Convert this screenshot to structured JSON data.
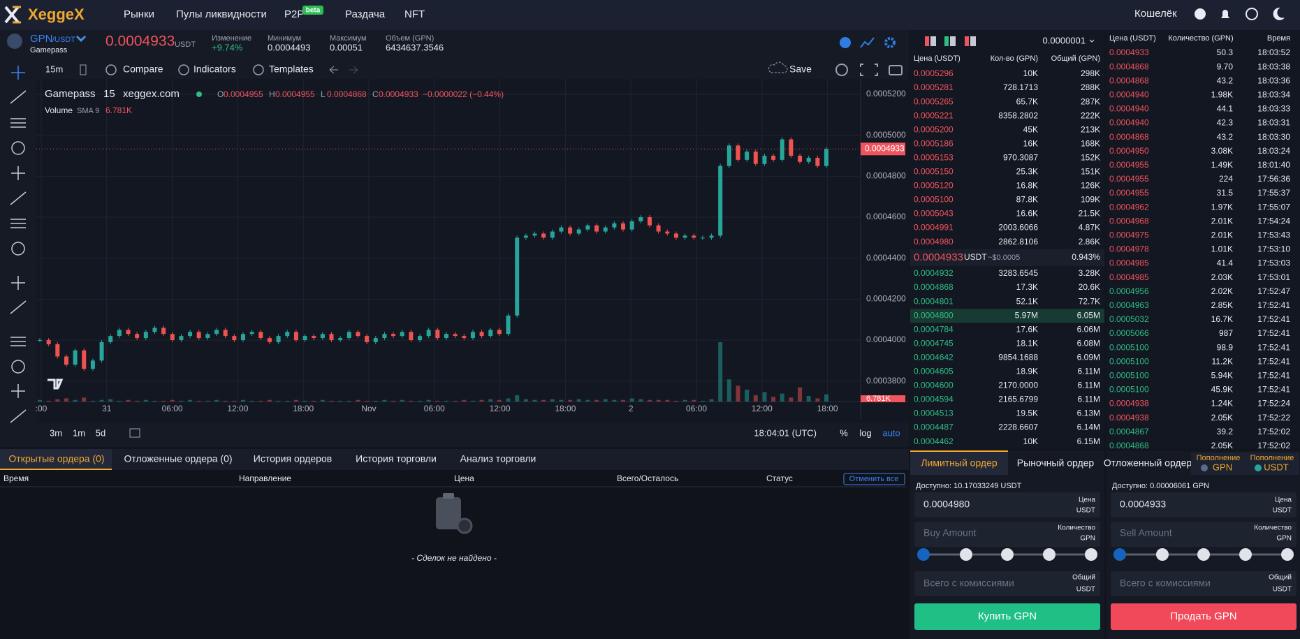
{
  "nav": {
    "logo": "XeggeX",
    "links": [
      "Рынки",
      "Пулы ликвидности",
      "P2P",
      "Раздача",
      "NFT"
    ],
    "badge": "beta",
    "wallet": "Кошелёк"
  },
  "ticker": {
    "base": "GPN",
    "quote": "/USDT",
    "name": "Gamepass",
    "price": "0.0004933",
    "price_unit": "USDT",
    "stats": [
      {
        "label": "Изменение",
        "value": "+9.74%"
      },
      {
        "label": "Минимум",
        "value": "0.0004493"
      },
      {
        "label": "Максимум",
        "value": "0.00051"
      },
      {
        "label": "Объем (GPN)",
        "value": "6434637.3546"
      }
    ]
  },
  "toolbar": {
    "interval": "15m",
    "items": [
      "Compare",
      "Indicators",
      "Templates"
    ],
    "save": "Save"
  },
  "chart": {
    "type": "candlestick",
    "symbol": "Gamepass",
    "interval": "15",
    "source": "xeggex.com",
    "ohlc": [
      {
        "key": "O",
        "value": "0.0004955"
      },
      {
        "key": "H",
        "value": "0.0004955"
      },
      {
        "key": "L",
        "value": "0.0004868"
      },
      {
        "key": "C",
        "value": "0.0004933"
      }
    ],
    "change": "−0.0000022 (−0.44%)",
    "volume_name": "Volume",
    "volume_sma": "SMA 9",
    "volume_value": "6.781K",
    "ylim": [
      0.00037,
      0.0005275
    ],
    "yticks": [
      {
        "value": 0.00052,
        "label": "0.0005200"
      },
      {
        "value": 0.0005,
        "label": "0.0005000"
      },
      {
        "value": 0.00048,
        "label": "0.0004800"
      },
      {
        "value": 0.00046,
        "label": "0.0004600"
      },
      {
        "value": 0.00044,
        "label": "0.0004400"
      },
      {
        "value": 0.00042,
        "label": "0.0004200"
      },
      {
        "value": 0.0004,
        "label": "0.0004000"
      },
      {
        "value": 0.00038,
        "label": "0.0003800"
      }
    ],
    "last_price": {
      "value": 0.0004933,
      "label": "0.0004933"
    },
    "xticks": [
      ":00",
      "31",
      "06:00",
      "12:00",
      "18:00",
      "Nov",
      "06:00",
      "12:00",
      "18:00",
      "2",
      "06:00",
      "12:00",
      "18:00"
    ],
    "closes": [
      0.0004,
      0.000398,
      0.000392,
      0.000388,
      0.000395,
      0.000386,
      0.00039,
      0.000399,
      0.000402,
      0.000405,
      0.000403,
      0.000401,
      0.000404,
      0.000406,
      0.000403,
      0.0004,
      0.000402,
      0.000404,
      0.000401,
      0.000403,
      0.000405,
      0.000402,
      0.0004,
      0.000403,
      0.000404,
      0.000401,
      0.000399,
      0.000402,
      0.000404,
      0.0004,
      0.000402,
      0.000401,
      0.000403,
      0.0004,
      0.000401,
      0.000404,
      0.000402,
      0.000399,
      0.000401,
      0.000403,
      0.000402,
      0.000404,
      0.0004,
      0.000402,
      0.000405,
      0.000401,
      0.000403,
      0.000402,
      0.000401,
      0.000404,
      0.000402,
      0.000405,
      0.000403,
      0.000412,
      0.00045,
      0.000451,
      0.000452,
      0.00045,
      0.000453,
      0.000455,
      0.000452,
      0.000454,
      0.000456,
      0.000453,
      0.000455,
      0.000457,
      0.000454,
      0.000458,
      0.00046,
      0.000456,
      0.000453,
      0.000452,
      0.00045,
      0.000451,
      0.00045,
      0.00045,
      0.000451,
      0.000485,
      0.000495,
      0.000488,
      0.000492,
      0.000486,
      0.00049,
      0.000488,
      0.000498,
      0.00049,
      0.000487,
      0.000489,
      0.000485,
      0.0004933
    ],
    "volumes": [
      2,
      1,
      3,
      4,
      2,
      5,
      1,
      2,
      3,
      1,
      2,
      1,
      2,
      1,
      1,
      2,
      1,
      2,
      1,
      1,
      2,
      1,
      1,
      2,
      1,
      1,
      2,
      1,
      1,
      2,
      1,
      1,
      2,
      1,
      1,
      1,
      2,
      1,
      1,
      2,
      1,
      2,
      1,
      1,
      2,
      1,
      1,
      1,
      2,
      1,
      2,
      3,
      2,
      4,
      8,
      3,
      2,
      2,
      3,
      2,
      2,
      3,
      2,
      2,
      3,
      2,
      2,
      4,
      3,
      2,
      2,
      2,
      1,
      2,
      2,
      1,
      3,
      75,
      28,
      20,
      15,
      8,
      12,
      6,
      10,
      5,
      18,
      7,
      4,
      9
    ],
    "up_color": "#26a69a",
    "down_color": "#ef5350",
    "grid": true
  },
  "chart_footer": {
    "ranges": [
      "3m",
      "1m",
      "5d"
    ],
    "time": "18:04:01 (UTC)",
    "scale": [
      "%",
      "log",
      "auto"
    ]
  },
  "orders": {
    "tabs": [
      "Открытые ордера (0)",
      "Отложенные ордера (0)",
      "История ордеров",
      "История торговли",
      "Анализ торговли"
    ],
    "columns": [
      "Время",
      "Направление",
      "Цена",
      "Всего/Осталось",
      "Статус"
    ],
    "cancel_all": "Отменить все",
    "empty": "- Сделок не найдено -"
  },
  "order_book": {
    "tick": "0.0000001",
    "columns": [
      "Цена (USDT)",
      "Кол-во (GPN)",
      "Общий (GPN)"
    ],
    "asks": [
      [
        "0.0005296",
        "10K",
        "298K"
      ],
      [
        "0.0005281",
        "728.1713",
        "288K"
      ],
      [
        "0.0005265",
        "65.7K",
        "287K"
      ],
      [
        "0.0005221",
        "8358.2802",
        "222K"
      ],
      [
        "0.0005200",
        "45K",
        "213K"
      ],
      [
        "0.0005186",
        "16K",
        "168K"
      ],
      [
        "0.0005153",
        "970.3087",
        "152K"
      ],
      [
        "0.0005150",
        "25.3K",
        "151K"
      ],
      [
        "0.0005120",
        "16.8K",
        "126K"
      ],
      [
        "0.0005100",
        "87.8K",
        "109K"
      ],
      [
        "0.0005043",
        "16.6K",
        "21.5K"
      ],
      [
        "0.0004991",
        "2003.6066",
        "4.87K"
      ],
      [
        "0.0004980",
        "2862.8106",
        "2.86K"
      ]
    ],
    "mid": {
      "price": "0.0004933",
      "unit": "USDT",
      "usd": "~$0.0005",
      "spread": "0.943%"
    },
    "bids": [
      [
        "0.0004932",
        "3283.6545",
        "3.28K"
      ],
      [
        "0.0004868",
        "17.3K",
        "20.6K"
      ],
      [
        "0.0004801",
        "52.1K",
        "72.7K"
      ],
      [
        "0.0004800",
        "5.97M",
        "6.05M"
      ],
      [
        "0.0004784",
        "17.6K",
        "6.06M"
      ],
      [
        "0.0004745",
        "18.1K",
        "6.08M"
      ],
      [
        "0.0004642",
        "9854.1688",
        "6.09M"
      ],
      [
        "0.0004605",
        "18.9K",
        "6.11M"
      ],
      [
        "0.0004600",
        "2170.0000",
        "6.11M"
      ],
      [
        "0.0004594",
        "2165.6799",
        "6.11M"
      ],
      [
        "0.0004513",
        "19.5K",
        "6.13M"
      ],
      [
        "0.0004487",
        "2228.6607",
        "6.14M"
      ],
      [
        "0.0004462",
        "10K",
        "6.15M"
      ]
    ]
  },
  "trades": {
    "columns": [
      "Цена (USDT)",
      "Количество (GPN)",
      "Время"
    ],
    "rows": [
      {
        "price": "0.0004933",
        "qty": "50.3",
        "time": "18:03:52",
        "side": "sell"
      },
      {
        "price": "0.0004868",
        "qty": "9.70",
        "time": "18:03:38",
        "side": "sell"
      },
      {
        "price": "0.0004868",
        "qty": "43.2",
        "time": "18:03:36",
        "side": "sell"
      },
      {
        "price": "0.0004940",
        "qty": "1.98K",
        "time": "18:03:34",
        "side": "sell"
      },
      {
        "price": "0.0004940",
        "qty": "44.1",
        "time": "18:03:33",
        "side": "sell"
      },
      {
        "price": "0.0004940",
        "qty": "42.3",
        "time": "18:03:31",
        "side": "sell"
      },
      {
        "price": "0.0004868",
        "qty": "43.2",
        "time": "18:03:30",
        "side": "sell"
      },
      {
        "price": "0.0004950",
        "qty": "3.08K",
        "time": "18:03:24",
        "side": "sell"
      },
      {
        "price": "0.0004955",
        "qty": "1.49K",
        "time": "18:01:40",
        "side": "sell"
      },
      {
        "price": "0.0004955",
        "qty": "224",
        "time": "17:56:36",
        "side": "sell"
      },
      {
        "price": "0.0004955",
        "qty": "31.5",
        "time": "17:55:37",
        "side": "sell"
      },
      {
        "price": "0.0004962",
        "qty": "1.97K",
        "time": "17:55:07",
        "side": "sell"
      },
      {
        "price": "0.0004968",
        "qty": "2.01K",
        "time": "17:54:24",
        "side": "sell"
      },
      {
        "price": "0.0004975",
        "qty": "2.01K",
        "time": "17:53:43",
        "side": "sell"
      },
      {
        "price": "0.0004978",
        "qty": "1.01K",
        "time": "17:53:10",
        "side": "sell"
      },
      {
        "price": "0.0004985",
        "qty": "41.4",
        "time": "17:53:03",
        "side": "sell"
      },
      {
        "price": "0.0004985",
        "qty": "2.03K",
        "time": "17:53:01",
        "side": "sell"
      },
      {
        "price": "0.0004956",
        "qty": "2.02K",
        "time": "17:52:47",
        "side": "buy"
      },
      {
        "price": "0.0004963",
        "qty": "2.85K",
        "time": "17:52:41",
        "side": "buy"
      },
      {
        "price": "0.0005032",
        "qty": "16.7K",
        "time": "17:52:41",
        "side": "buy"
      },
      {
        "price": "0.0005066",
        "qty": "987",
        "time": "17:52:41",
        "side": "buy"
      },
      {
        "price": "0.0005100",
        "qty": "98.9",
        "time": "17:52:41",
        "side": "buy"
      },
      {
        "price": "0.0005100",
        "qty": "11.2K",
        "time": "17:52:41",
        "side": "buy"
      },
      {
        "price": "0.0005100",
        "qty": "5.94K",
        "time": "17:52:41",
        "side": "buy"
      },
      {
        "price": "0.0005100",
        "qty": "45.9K",
        "time": "17:52:41",
        "side": "buy"
      },
      {
        "price": "0.0004938",
        "qty": "1.24K",
        "time": "17:52:24",
        "side": "sell"
      },
      {
        "price": "0.0004938",
        "qty": "2.05K",
        "time": "17:52:22",
        "side": "sell"
      },
      {
        "price": "0.0004867",
        "qty": "39.2",
        "time": "17:52:02",
        "side": "buy"
      },
      {
        "price": "0.0004868",
        "qty": "2.05K",
        "time": "17:52:02",
        "side": "buy"
      }
    ]
  },
  "buy_form": {
    "tabs": [
      "Лимитный ордер",
      "Рыночный ордер"
    ],
    "available": "Доступно: 10.17033249 USDT",
    "price": "0.0004980",
    "price_label": "Цена",
    "price_unit": "USDT",
    "amount_placeholder": "Buy Amount",
    "amount_label": "Количество",
    "amount_unit": "GPN",
    "total_placeholder": "Всего с комиссиями",
    "total_label": "Общий",
    "total_unit": "USDT",
    "button": "Купить GPN"
  },
  "sell_form": {
    "tabs": [
      "Отложенный ордер"
    ],
    "deposits": [
      {
        "label": "Пополнение",
        "asset": "GPN"
      },
      {
        "label": "Пополнение",
        "asset": "USDT"
      }
    ],
    "available": "Доступно: 0.00006061 GPN",
    "price": "0.0004933",
    "price_label": "Цена",
    "price_unit": "USDT",
    "amount_placeholder": "Sell Amount",
    "amount_label": "Количество",
    "amount_unit": "GPN",
    "total_placeholder": "Всего с комиссиями",
    "total_label": "Общий",
    "total_unit": "USDT",
    "button": "Продать GPN"
  }
}
